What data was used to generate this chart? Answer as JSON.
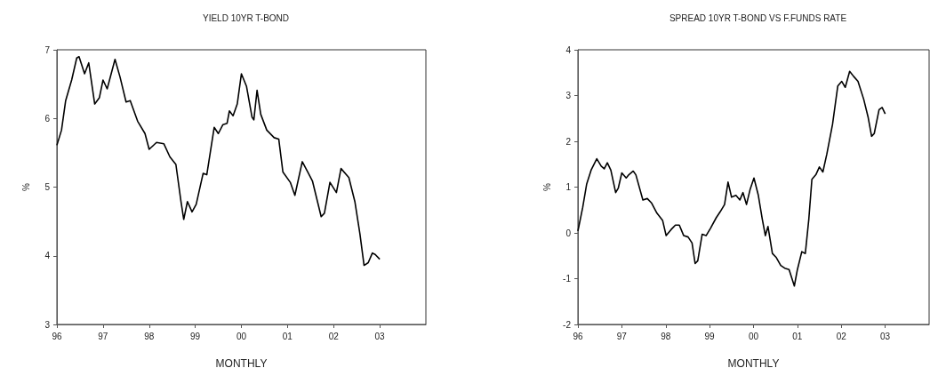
{
  "chart_data": [
    {
      "type": "line",
      "title": "YIELD 10YR T-BOND",
      "xlabel": "MONTHLY",
      "ylabel": "%",
      "color": "#000000",
      "marker": "none",
      "x": [
        1996.0,
        1996.1,
        1996.19,
        1996.32,
        1996.43,
        1996.48,
        1996.6,
        1996.69,
        1996.82,
        1996.92,
        1997.0,
        1997.09,
        1997.26,
        1997.37,
        1997.5,
        1997.59,
        1997.75,
        1997.91,
        1998.0,
        1998.16,
        1998.32,
        1998.45,
        1998.58,
        1998.69,
        1998.75,
        1998.83,
        1998.93,
        1999.02,
        1999.17,
        1999.25,
        1999.41,
        1999.5,
        1999.6,
        1999.69,
        1999.74,
        1999.82,
        1999.91,
        2000.0,
        2000.11,
        2000.23,
        2000.27,
        2000.34,
        2000.42,
        2000.55,
        2000.71,
        2000.81,
        2000.9,
        2001.06,
        2001.16,
        2001.32,
        2001.44,
        2001.54,
        2001.73,
        2001.8,
        2001.92,
        2002.06,
        2002.16,
        2002.33,
        2002.46,
        2002.57,
        2002.66,
        2002.75,
        2002.84,
        2002.9,
        2003.0
      ],
      "values": [
        5.61,
        5.83,
        6.26,
        6.56,
        6.88,
        6.9,
        6.65,
        6.81,
        6.21,
        6.3,
        6.56,
        6.43,
        6.86,
        6.6,
        6.24,
        6.26,
        5.96,
        5.78,
        5.55,
        5.65,
        5.63,
        5.44,
        5.33,
        4.79,
        4.53,
        4.79,
        4.64,
        4.75,
        5.2,
        5.18,
        5.87,
        5.78,
        5.91,
        5.93,
        6.11,
        6.04,
        6.21,
        6.65,
        6.47,
        6.02,
        5.98,
        6.41,
        6.06,
        5.83,
        5.72,
        5.7,
        5.22,
        5.07,
        4.88,
        5.37,
        5.22,
        5.09,
        4.57,
        4.62,
        5.07,
        4.92,
        5.27,
        5.14,
        4.79,
        4.32,
        3.86,
        3.9,
        4.04,
        4.02,
        3.95
      ],
      "xlim": [
        1996,
        2004
      ],
      "xticks": [
        {
          "value": 1996,
          "label": "96"
        },
        {
          "value": 1997,
          "label": "97"
        },
        {
          "value": 1998,
          "label": "98"
        },
        {
          "value": 1999,
          "label": "99"
        },
        {
          "value": 2000,
          "label": "00"
        },
        {
          "value": 2001,
          "label": "01"
        },
        {
          "value": 2002,
          "label": "02"
        },
        {
          "value": 2003,
          "label": "03"
        }
      ],
      "ylim": [
        3,
        7
      ],
      "yticks": [
        3,
        4,
        5,
        6,
        7
      ]
    },
    {
      "type": "line",
      "title": "SPREAD 10YR T-BOND VS F.FUNDS RATE",
      "xlabel": "MONTHLY",
      "ylabel": "%",
      "color": "#000000",
      "marker": "none",
      "x": [
        1996.0,
        1996.11,
        1996.2,
        1996.3,
        1996.43,
        1996.53,
        1996.6,
        1996.67,
        1996.75,
        1996.86,
        1996.92,
        1997.0,
        1997.1,
        1997.16,
        1997.26,
        1997.32,
        1997.48,
        1997.58,
        1997.68,
        1997.8,
        1997.93,
        1998.01,
        1998.12,
        1998.22,
        1998.31,
        1998.41,
        1998.51,
        1998.6,
        1998.67,
        1998.73,
        1998.83,
        1998.92,
        1999.02,
        1999.15,
        1999.24,
        1999.34,
        1999.42,
        1999.5,
        1999.6,
        1999.69,
        1999.76,
        1999.84,
        1999.92,
        2000.01,
        2000.11,
        2000.2,
        2000.27,
        2000.33,
        2000.43,
        2000.52,
        2000.62,
        2000.71,
        2000.81,
        2000.93,
        2001.0,
        2001.1,
        2001.18,
        2001.26,
        2001.33,
        2001.42,
        2001.5,
        2001.58,
        2001.67,
        2001.8,
        2001.92,
        2002.01,
        2002.09,
        2002.19,
        2002.28,
        2002.38,
        2002.51,
        2002.61,
        2002.69,
        2002.75,
        2002.86,
        2002.93,
        2003.0
      ],
      "values": [
        0.04,
        0.56,
        1.07,
        1.37,
        1.62,
        1.46,
        1.4,
        1.53,
        1.37,
        0.88,
        0.98,
        1.31,
        1.2,
        1.27,
        1.35,
        1.27,
        0.72,
        0.75,
        0.65,
        0.43,
        0.27,
        -0.06,
        0.07,
        0.17,
        0.17,
        -0.06,
        -0.09,
        -0.22,
        -0.67,
        -0.61,
        -0.03,
        -0.06,
        0.1,
        0.33,
        0.46,
        0.62,
        1.11,
        0.78,
        0.82,
        0.72,
        0.88,
        0.62,
        0.94,
        1.2,
        0.82,
        0.3,
        -0.06,
        0.14,
        -0.45,
        -0.54,
        -0.71,
        -0.77,
        -0.8,
        -1.16,
        -0.8,
        -0.41,
        -0.45,
        0.3,
        1.17,
        1.27,
        1.44,
        1.33,
        1.72,
        2.37,
        3.21,
        3.31,
        3.18,
        3.53,
        3.42,
        3.31,
        2.92,
        2.53,
        2.11,
        2.17,
        2.69,
        2.74,
        2.6
      ],
      "xlim": [
        1996,
        2004
      ],
      "xticks": [
        {
          "value": 1996,
          "label": "96"
        },
        {
          "value": 1997,
          "label": "97"
        },
        {
          "value": 1998,
          "label": "98"
        },
        {
          "value": 1999,
          "label": "99"
        },
        {
          "value": 2000,
          "label": "00"
        },
        {
          "value": 2001,
          "label": "01"
        },
        {
          "value": 2002,
          "label": "02"
        },
        {
          "value": 2003,
          "label": "03"
        }
      ],
      "ylim": [
        -2,
        4
      ],
      "yticks": [
        -2,
        -1,
        0,
        1,
        2,
        3,
        4
      ]
    }
  ]
}
